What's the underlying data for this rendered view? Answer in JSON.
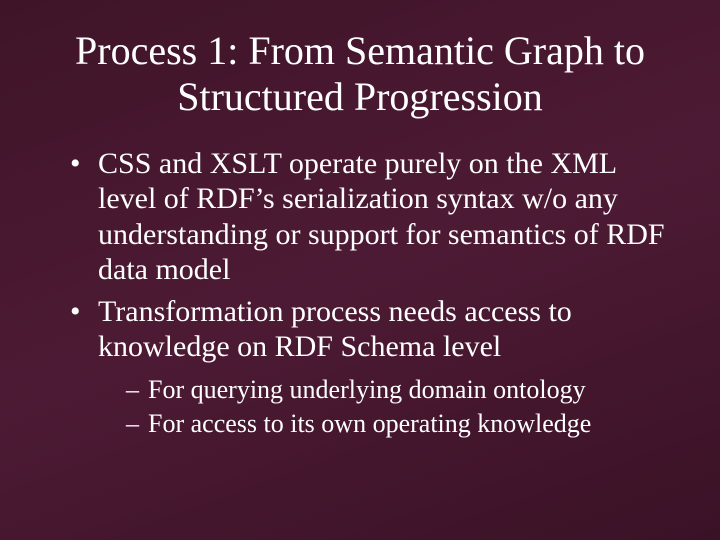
{
  "slide": {
    "title": "Process 1: From Semantic Graph to Structured Progression",
    "background_gradient": [
      "#3f1428",
      "#4d1a34",
      "#3a1226"
    ],
    "text_color": "#ffffff",
    "title_fontsize": 40,
    "body_fontsize": 30,
    "sub_fontsize": 26,
    "font_family": "Times New Roman",
    "bullets": [
      {
        "text": "CSS and XSLT operate purely on the XML level of RDF’s serialization syntax w/o any understanding or support for semantics of RDF data model"
      },
      {
        "text": "Transformation process  needs access to knowledge on RDF Schema level",
        "sub": [
          "For querying underlying domain ontology",
          "For access to its own operating knowledge"
        ]
      }
    ]
  }
}
